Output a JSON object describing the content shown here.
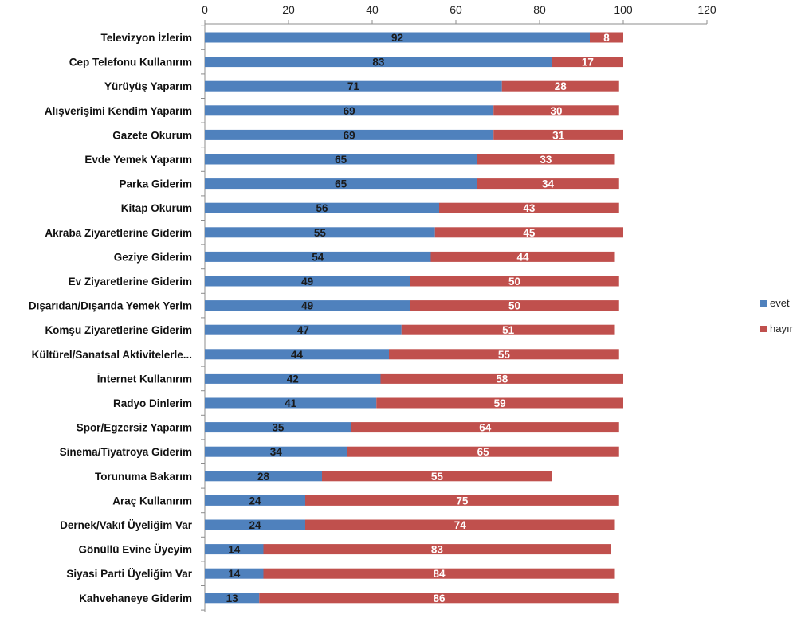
{
  "chart_data": {
    "type": "bar",
    "orientation": "horizontal",
    "stacked": true,
    "title": "",
    "xlabel": "",
    "ylabel": "",
    "xlim": [
      0,
      120
    ],
    "x_ticks": [
      0,
      20,
      40,
      60,
      80,
      100,
      120
    ],
    "x_axis_position": "top",
    "grid": false,
    "legend_position": "right",
    "categories": [
      "Televizyon İzlerim",
      "Cep Telefonu Kullanırım",
      "Yürüyüş Yaparım",
      "Alışverişimi Kendim Yaparım",
      "Gazete Okurum",
      "Evde Yemek Yaparım",
      "Parka Giderim",
      "Kitap Okurum",
      "Akraba Ziyaretlerine Giderim",
      "Geziye Giderim",
      "Ev Ziyaretlerine Giderim",
      "Dışarıdan/Dışarıda Yemek Yerim",
      "Komşu Ziyaretlerine Giderim",
      "Kültürel/Sanatsal Aktivitelerle...",
      "İnternet Kullanırım",
      "Radyo Dinlerim",
      "Spor/Egzersiz Yaparım",
      "Sinema/Tiyatroya Giderim",
      "Torunuma Bakarım",
      "Araç Kullanırım",
      "Dernek/Vakıf Üyeliğim Var",
      "Gönüllü Evine Üyeyim",
      "Siyasi Parti Üyeliğim Var",
      "Kahvehaneye Giderim"
    ],
    "series": [
      {
        "name": "evet",
        "color": "#4f81bd",
        "label_color": "#1a1a1a",
        "values": [
          92,
          83,
          71,
          69,
          69,
          65,
          65,
          56,
          55,
          54,
          49,
          49,
          47,
          44,
          42,
          41,
          35,
          34,
          28,
          24,
          24,
          14,
          14,
          13
        ]
      },
      {
        "name": "hayır",
        "color": "#c0504d",
        "label_color": "#ffffff",
        "values": [
          8,
          17,
          28,
          30,
          31,
          33,
          34,
          43,
          45,
          44,
          50,
          50,
          51,
          55,
          58,
          59,
          64,
          65,
          55,
          75,
          74,
          83,
          84,
          86
        ]
      }
    ]
  }
}
